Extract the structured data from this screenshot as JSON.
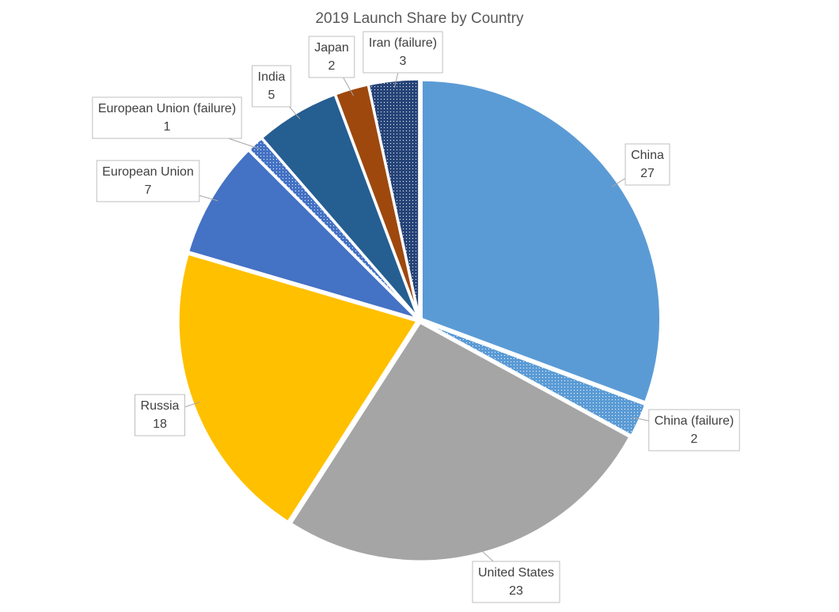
{
  "chart_data": {
    "type": "pie",
    "title": "2019 Launch Share by Country",
    "categories": [
      "China",
      "China (failure)",
      "United States",
      "Russia",
      "European Union",
      "European Union (failure)",
      "India",
      "Japan",
      "Iran (failure)"
    ],
    "values": [
      27,
      2,
      23,
      18,
      7,
      1,
      5,
      2,
      3
    ],
    "colors": [
      "#5b9bd5",
      "#5b9bd5",
      "#a5a5a5",
      "#ffc000",
      "#4472c4",
      "#4472c4",
      "#255e91",
      "#9e480e",
      "#264478"
    ],
    "dotted": [
      false,
      true,
      false,
      false,
      false,
      true,
      false,
      false,
      true
    ]
  }
}
